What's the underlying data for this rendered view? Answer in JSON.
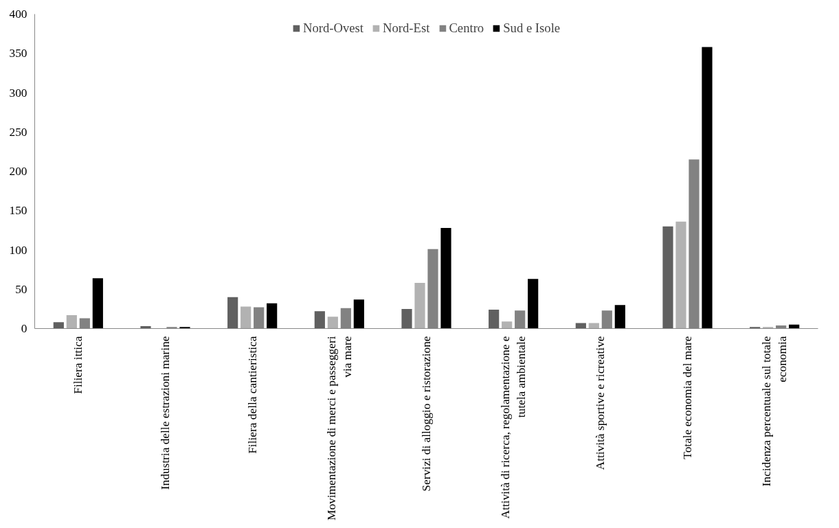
{
  "chart_data": {
    "type": "bar",
    "categories": [
      "Filiera ittica",
      "Industria delle estrazioni marine",
      "Filiera della cantieristica",
      "Movimentazione di merci e passeggeri via mare",
      "Servizi di alloggio e ristorazione",
      "Attività di ricerca, regolamentazione e tutela ambientale",
      "Attività sportive e ricreative",
      "Totale economia del mare",
      "Incidenza percentuale sul totale economia"
    ],
    "series": [
      {
        "name": "Nord-Ovest",
        "color": "#606060",
        "values": [
          8,
          3,
          40,
          22,
          25,
          24,
          7,
          130,
          2
        ]
      },
      {
        "name": "Nord-Est",
        "color": "#b2b2b2",
        "values": [
          17,
          null,
          28,
          15,
          58,
          9,
          7,
          136,
          2
        ]
      },
      {
        "name": "Centro",
        "color": "#828282",
        "values": [
          13,
          2,
          27,
          26,
          101,
          23,
          23,
          215,
          4
        ]
      },
      {
        "name": "Sud e Isole",
        "color": "#000000",
        "values": [
          64,
          2,
          32,
          37,
          128,
          63,
          30,
          358,
          5
        ]
      }
    ],
    "ylim": [
      0,
      400
    ],
    "yticks": [
      0,
      50,
      100,
      150,
      200,
      250,
      300,
      350,
      400
    ],
    "grid": false,
    "legend": "top"
  }
}
